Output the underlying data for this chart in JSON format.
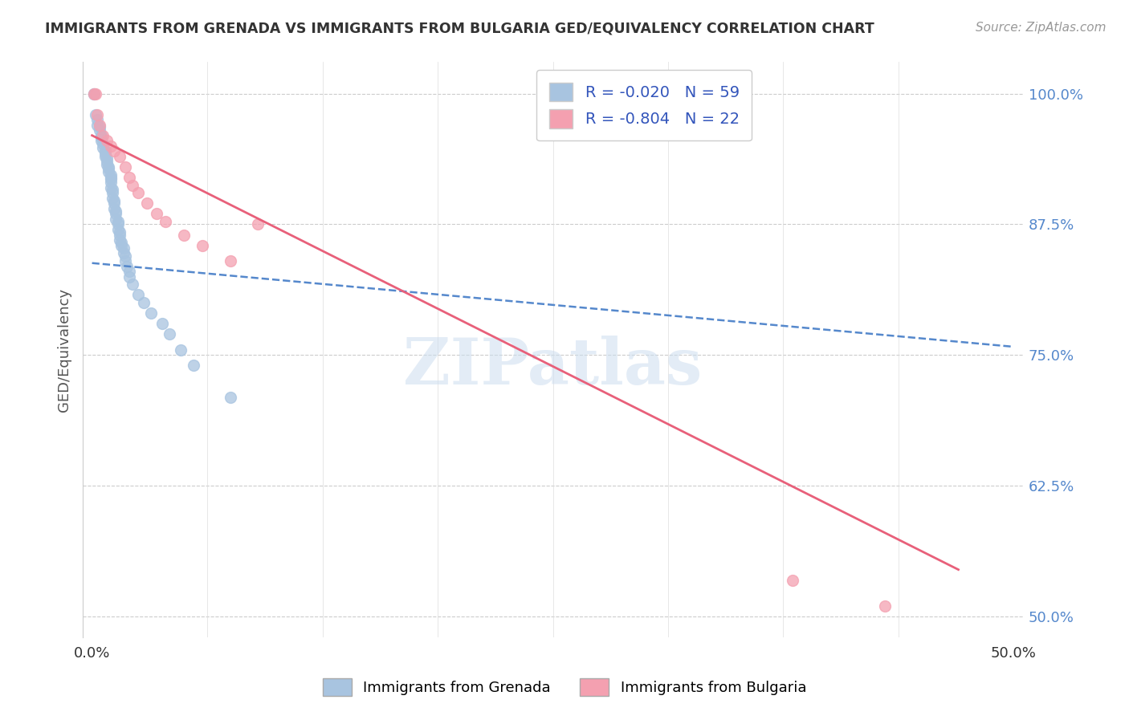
{
  "title": "IMMIGRANTS FROM GRENADA VS IMMIGRANTS FROM BULGARIA GED/EQUIVALENCY CORRELATION CHART",
  "source": "Source: ZipAtlas.com",
  "ylabel": "GED/Equivalency",
  "xlim": [
    -0.005,
    0.505
  ],
  "ylim": [
    0.48,
    1.03
  ],
  "yticks": [
    0.5,
    0.625,
    0.75,
    0.875,
    1.0
  ],
  "ytick_labels": [
    "50.0%",
    "62.5%",
    "75.0%",
    "87.5%",
    "100.0%"
  ],
  "xtick_positions": [
    0.0,
    0.0625,
    0.125,
    0.1875,
    0.25,
    0.3125,
    0.375,
    0.4375,
    0.5
  ],
  "xtick_labels": [
    "0.0%",
    "",
    "",
    "",
    "",
    "",
    "",
    "",
    "50.0%"
  ],
  "grenada_R": -0.02,
  "grenada_N": 59,
  "bulgaria_R": -0.804,
  "bulgaria_N": 22,
  "grenada_color": "#a8c4e0",
  "bulgaria_color": "#f4a0b0",
  "grenada_line_color": "#5588cc",
  "bulgaria_line_color": "#e8607a",
  "background_color": "#ffffff",
  "watermark": "ZIPatlas",
  "grenada_x": [
    0.001,
    0.001,
    0.002,
    0.003,
    0.003,
    0.004,
    0.004,
    0.005,
    0.005,
    0.005,
    0.006,
    0.006,
    0.007,
    0.007,
    0.007,
    0.008,
    0.008,
    0.008,
    0.009,
    0.009,
    0.009,
    0.01,
    0.01,
    0.01,
    0.01,
    0.01,
    0.011,
    0.011,
    0.011,
    0.012,
    0.012,
    0.012,
    0.013,
    0.013,
    0.013,
    0.014,
    0.014,
    0.014,
    0.015,
    0.015,
    0.015,
    0.016,
    0.016,
    0.017,
    0.017,
    0.018,
    0.018,
    0.019,
    0.02,
    0.02,
    0.022,
    0.025,
    0.028,
    0.032,
    0.038,
    0.042,
    0.048,
    0.055,
    0.075
  ],
  "grenada_y": [
    1.0,
    1.0,
    0.98,
    0.975,
    0.97,
    0.968,
    0.965,
    0.96,
    0.958,
    0.955,
    0.952,
    0.948,
    0.945,
    0.943,
    0.94,
    0.938,
    0.935,
    0.932,
    0.93,
    0.928,
    0.925,
    0.922,
    0.92,
    0.918,
    0.915,
    0.91,
    0.908,
    0.905,
    0.9,
    0.898,
    0.895,
    0.89,
    0.888,
    0.885,
    0.88,
    0.878,
    0.875,
    0.87,
    0.868,
    0.865,
    0.86,
    0.858,
    0.855,
    0.852,
    0.848,
    0.845,
    0.84,
    0.835,
    0.83,
    0.825,
    0.818,
    0.808,
    0.8,
    0.79,
    0.78,
    0.77,
    0.755,
    0.74,
    0.71
  ],
  "bulgaria_x": [
    0.001,
    0.002,
    0.003,
    0.004,
    0.006,
    0.008,
    0.01,
    0.012,
    0.015,
    0.018,
    0.02,
    0.022,
    0.025,
    0.03,
    0.035,
    0.04,
    0.05,
    0.06,
    0.075,
    0.09,
    0.38,
    0.43
  ],
  "bulgaria_y": [
    1.0,
    1.0,
    0.98,
    0.97,
    0.96,
    0.955,
    0.95,
    0.945,
    0.94,
    0.93,
    0.92,
    0.912,
    0.905,
    0.895,
    0.885,
    0.878,
    0.865,
    0.855,
    0.84,
    0.875,
    0.535,
    0.51
  ],
  "grenada_line_x": [
    0.0,
    0.5
  ],
  "grenada_line_y": [
    0.838,
    0.758
  ],
  "bulgaria_line_x": [
    0.0,
    0.47
  ],
  "bulgaria_line_y": [
    0.96,
    0.545
  ]
}
